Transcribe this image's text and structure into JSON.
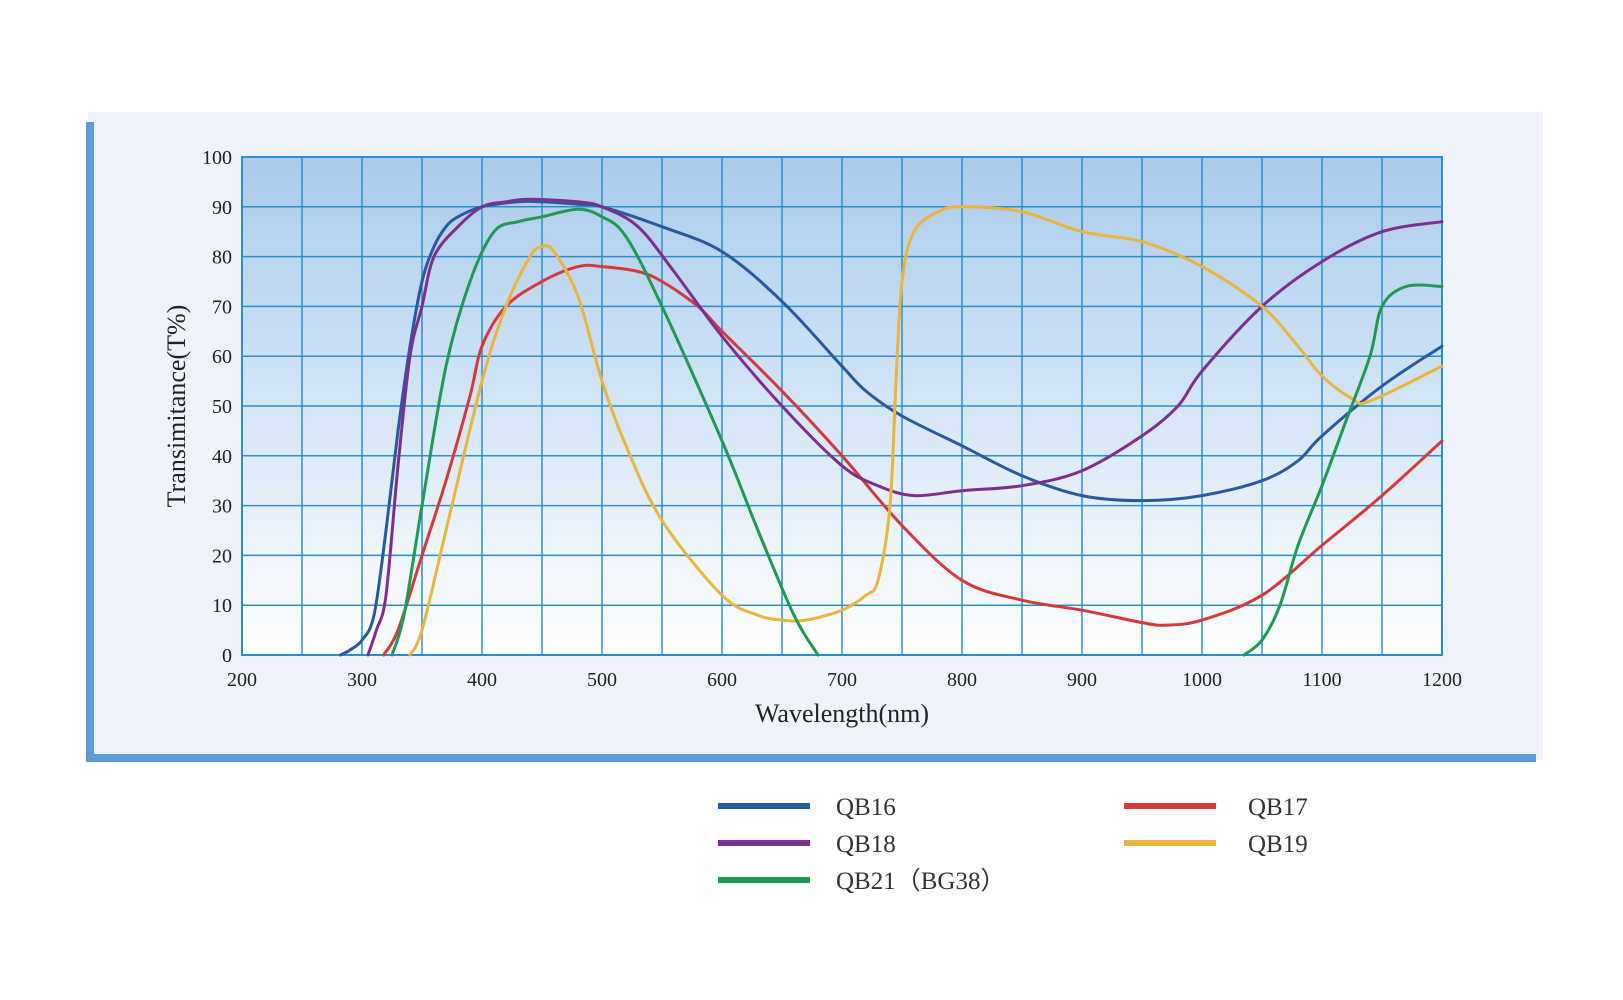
{
  "chart_data": {
    "type": "line",
    "xlabel": "Wavelength(nm)",
    "ylabel": "Transimitance(T%)",
    "xlim": [
      200,
      1200
    ],
    "ylim": [
      0,
      100
    ],
    "x_ticks": [
      "200",
      "300",
      "400",
      "500",
      "600",
      "700",
      "800",
      "900",
      "1000",
      "1100",
      "1200"
    ],
    "y_ticks": [
      "0",
      "10",
      "20",
      "30",
      "40",
      "50",
      "60",
      "70",
      "80",
      "90",
      "100"
    ],
    "grid": true,
    "legend_position": "bottom",
    "series": [
      {
        "name": "QB16",
        "color": "#2a5a9e",
        "points": [
          [
            282,
            0
          ],
          [
            290,
            1
          ],
          [
            300,
            3
          ],
          [
            310,
            8
          ],
          [
            320,
            25
          ],
          [
            330,
            45
          ],
          [
            340,
            62
          ],
          [
            350,
            75
          ],
          [
            360,
            82
          ],
          [
            370,
            86
          ],
          [
            380,
            88
          ],
          [
            400,
            90
          ],
          [
            430,
            91
          ],
          [
            450,
            91
          ],
          [
            480,
            90.5
          ],
          [
            500,
            90
          ],
          [
            550,
            86
          ],
          [
            600,
            81
          ],
          [
            650,
            71
          ],
          [
            700,
            58
          ],
          [
            720,
            53
          ],
          [
            750,
            48
          ],
          [
            800,
            42
          ],
          [
            850,
            36
          ],
          [
            900,
            32
          ],
          [
            950,
            31
          ],
          [
            1000,
            32
          ],
          [
            1050,
            35
          ],
          [
            1080,
            39
          ],
          [
            1100,
            44
          ],
          [
            1150,
            54
          ],
          [
            1200,
            62
          ]
        ]
      },
      {
        "name": "QB17",
        "color": "#d43a3c",
        "points": [
          [
            318,
            0
          ],
          [
            330,
            5
          ],
          [
            350,
            20
          ],
          [
            370,
            35
          ],
          [
            390,
            52
          ],
          [
            400,
            62
          ],
          [
            420,
            70
          ],
          [
            450,
            75
          ],
          [
            480,
            78
          ],
          [
            500,
            78
          ],
          [
            530,
            77
          ],
          [
            550,
            75
          ],
          [
            580,
            70
          ],
          [
            600,
            65
          ],
          [
            650,
            53
          ],
          [
            700,
            40
          ],
          [
            750,
            26
          ],
          [
            800,
            15
          ],
          [
            850,
            11
          ],
          [
            900,
            9
          ],
          [
            950,
            6.5
          ],
          [
            970,
            6
          ],
          [
            1000,
            7
          ],
          [
            1050,
            12
          ],
          [
            1100,
            22
          ],
          [
            1150,
            32
          ],
          [
            1200,
            43
          ]
        ]
      },
      {
        "name": "QB18",
        "color": "#7e2f8e",
        "points": [
          [
            305,
            0
          ],
          [
            312,
            5
          ],
          [
            320,
            12
          ],
          [
            330,
            38
          ],
          [
            340,
            60
          ],
          [
            350,
            70
          ],
          [
            360,
            80
          ],
          [
            380,
            86
          ],
          [
            400,
            90
          ],
          [
            420,
            91
          ],
          [
            440,
            91.5
          ],
          [
            480,
            91
          ],
          [
            500,
            90
          ],
          [
            530,
            86
          ],
          [
            560,
            77
          ],
          [
            600,
            64
          ],
          [
            650,
            50
          ],
          [
            700,
            38
          ],
          [
            730,
            34
          ],
          [
            760,
            32
          ],
          [
            800,
            33
          ],
          [
            850,
            34
          ],
          [
            900,
            37
          ],
          [
            950,
            44
          ],
          [
            980,
            50
          ],
          [
            1000,
            57
          ],
          [
            1050,
            70
          ],
          [
            1100,
            79
          ],
          [
            1150,
            85
          ],
          [
            1200,
            87
          ]
        ]
      },
      {
        "name": "QB19",
        "color": "#e9b43f",
        "points": [
          [
            340,
            0
          ],
          [
            350,
            5
          ],
          [
            370,
            25
          ],
          [
            400,
            55
          ],
          [
            420,
            70
          ],
          [
            440,
            80
          ],
          [
            450,
            82
          ],
          [
            460,
            81
          ],
          [
            480,
            72
          ],
          [
            500,
            55
          ],
          [
            520,
            42
          ],
          [
            550,
            27
          ],
          [
            600,
            12
          ],
          [
            630,
            8
          ],
          [
            650,
            7
          ],
          [
            670,
            7
          ],
          [
            700,
            9
          ],
          [
            720,
            12
          ],
          [
            730,
            15
          ],
          [
            740,
            30
          ],
          [
            745,
            55
          ],
          [
            750,
            75
          ],
          [
            760,
            85
          ],
          [
            780,
            89
          ],
          [
            800,
            90
          ],
          [
            850,
            89
          ],
          [
            900,
            85
          ],
          [
            950,
            83
          ],
          [
            1000,
            78
          ],
          [
            1050,
            70
          ],
          [
            1080,
            62
          ],
          [
            1100,
            56
          ],
          [
            1125,
            51.5
          ],
          [
            1140,
            51
          ],
          [
            1200,
            58
          ]
        ]
      },
      {
        "name": "QB21 (BG38)",
        "color": "#1f9a55",
        "points": [
          [
            325,
            0
          ],
          [
            335,
            8
          ],
          [
            350,
            30
          ],
          [
            370,
            58
          ],
          [
            390,
            75
          ],
          [
            410,
            85
          ],
          [
            430,
            87
          ],
          [
            450,
            88
          ],
          [
            480,
            89.5
          ],
          [
            500,
            88
          ],
          [
            520,
            84
          ],
          [
            550,
            70
          ],
          [
            600,
            43
          ],
          [
            630,
            25
          ],
          [
            660,
            8
          ],
          [
            680,
            0
          ]
        ]
      },
      {
        "name": "QB21 (BG38)",
        "color": "#1f9a55",
        "points": [
          [
            1035,
            0
          ],
          [
            1050,
            3
          ],
          [
            1065,
            10
          ],
          [
            1080,
            22
          ],
          [
            1100,
            34
          ],
          [
            1120,
            47
          ],
          [
            1140,
            60
          ],
          [
            1150,
            70
          ],
          [
            1170,
            74
          ],
          [
            1200,
            74
          ]
        ]
      }
    ]
  },
  "legend": {
    "items": [
      {
        "label": "QB16",
        "color": "#2a5a9e"
      },
      {
        "label": "QB17",
        "color": "#d43a3c"
      },
      {
        "label": "QB18",
        "color": "#7e2f8e"
      },
      {
        "label": "QB19",
        "color": "#e9b43f"
      },
      {
        "label": "QB21（BG38）",
        "color": "#1f9a55"
      }
    ]
  }
}
